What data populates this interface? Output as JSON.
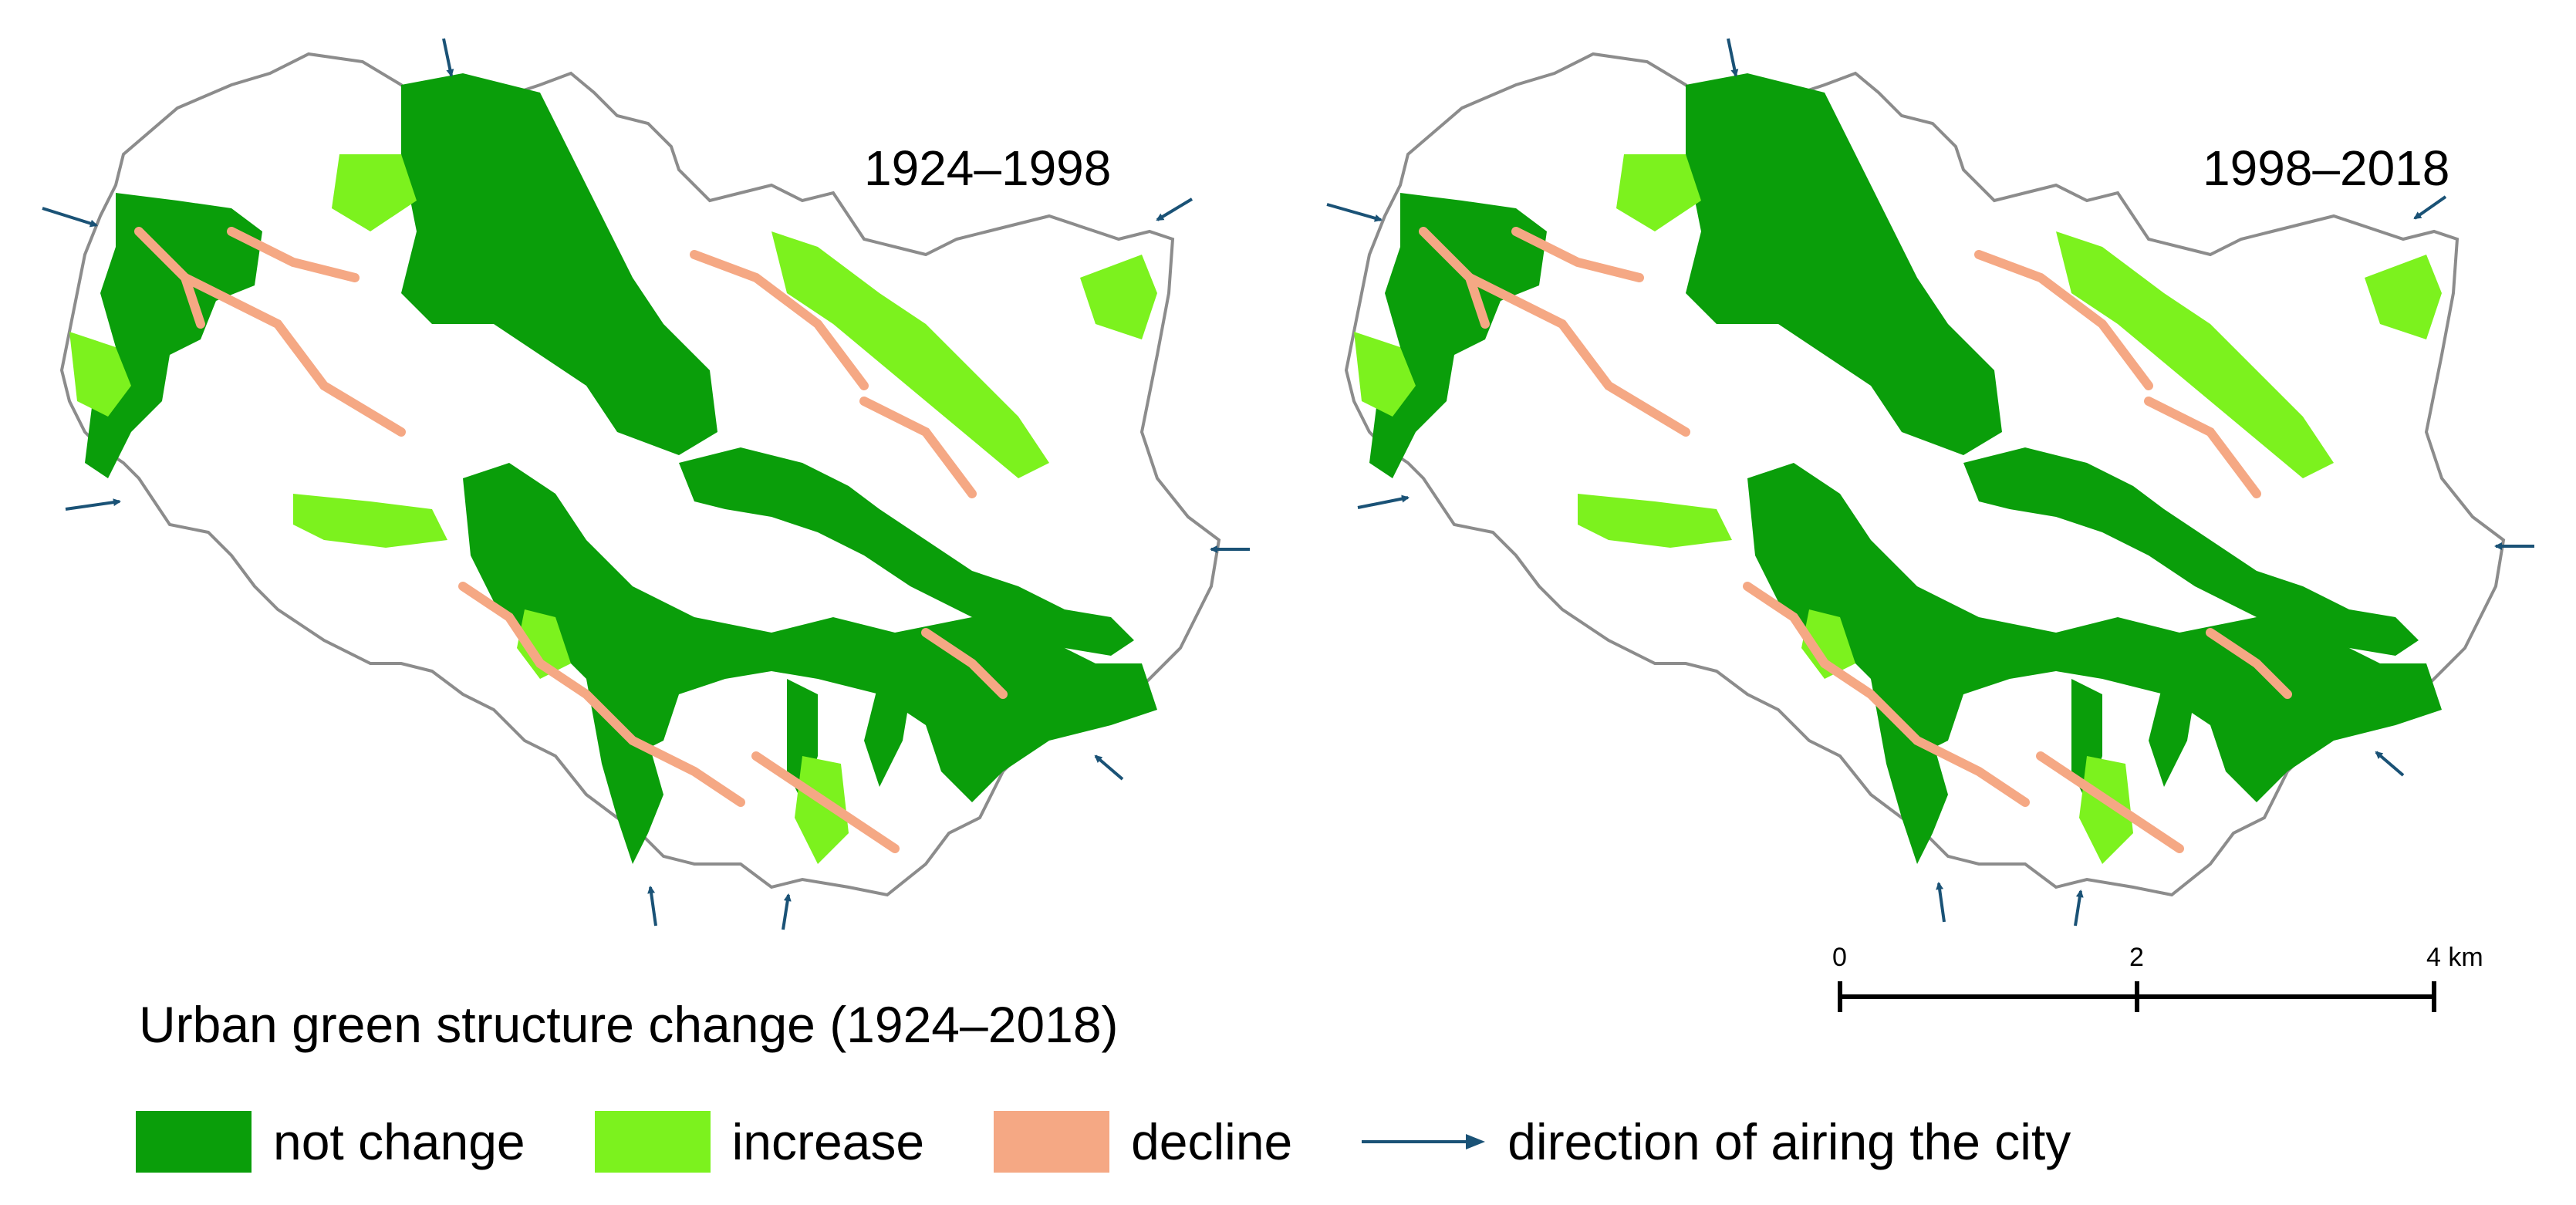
{
  "maps": [
    {
      "title": "1924–1998"
    },
    {
      "title": "1998–2018"
    }
  ],
  "scale_bar": {
    "tick_labels": [
      "0",
      "2",
      "4 km"
    ]
  },
  "legend": {
    "title": "Urban green structure change (1924–2018)",
    "items": [
      {
        "label": "not change",
        "color": "#0a9e0a"
      },
      {
        "label": "increase",
        "color": "#7cf21e"
      },
      {
        "label": "decline",
        "color": "#f5a884"
      }
    ],
    "arrow_item": {
      "label": "direction of airing the city",
      "color": "#1a5276"
    }
  },
  "colors": {
    "city_boundary": "#8c8c8c",
    "not_change": "#0a9e0a",
    "increase": "#7cf21e",
    "decline": "#f5a884",
    "arrow": "#1a5276"
  }
}
